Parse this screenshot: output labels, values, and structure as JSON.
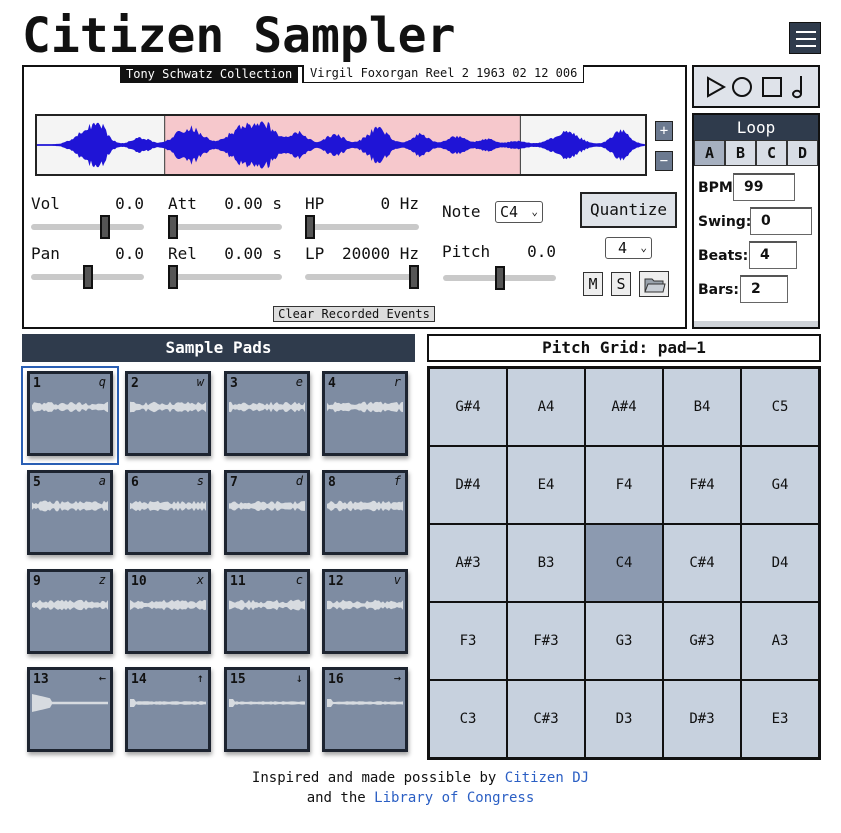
{
  "app": {
    "title": "Citizen Sampler"
  },
  "header": {
    "menu_icon": "hamburger-menu-icon"
  },
  "source": {
    "collection": "Tony Schwatz Collection",
    "reel": "Virgil Foxorgan Reel 2 1963 02 12 006"
  },
  "waveform": {
    "selection_start": 0.21,
    "selection_end": 0.795,
    "wave_color": "#1f14d6",
    "selection_color": "#f6c8cc",
    "zoom_in": "+",
    "zoom_out": "−"
  },
  "params": {
    "vol": {
      "label": "Vol",
      "value": "0.0",
      "level": 0.67
    },
    "pan": {
      "label": "Pan",
      "value": "0.0",
      "level": 0.5
    },
    "att": {
      "label": "Att",
      "value": "0.00 s",
      "level": 0.0
    },
    "rel": {
      "label": "Rel",
      "value": "0.00 s",
      "level": 0.0
    },
    "hp": {
      "label": "HP",
      "value": "0 Hz",
      "level": 0.0
    },
    "lp": {
      "label": "LP",
      "value": "20000 Hz",
      "level": 1.0
    },
    "pitch": {
      "label": "Pitch",
      "value": "0.0",
      "level": 0.5
    }
  },
  "note": {
    "label": "Note",
    "selected": "C4"
  },
  "quantize": {
    "label": "Quantize",
    "division": "4"
  },
  "buttons": {
    "mute": "M",
    "solo": "S",
    "folder_icon": "folder-icon",
    "clear": "Clear Recorded Events"
  },
  "transport": {
    "play_icon": "play-icon",
    "record_icon": "record-icon",
    "stop_icon": "stop-icon",
    "metronome_icon": "quarter-note-icon"
  },
  "loop": {
    "title": "Loop",
    "tabs": [
      "A",
      "B",
      "C",
      "D"
    ],
    "active_tab": "A",
    "bpm": {
      "label": "BPM:",
      "value": "99"
    },
    "swing": {
      "label": "Swing:",
      "value": "0"
    },
    "beats": {
      "label": "Beats:",
      "value": "4"
    },
    "bars": {
      "label": "Bars:",
      "value": "2"
    }
  },
  "pads": {
    "title": "Sample Pads",
    "selected": "1",
    "items": [
      {
        "num": "1",
        "key": "q"
      },
      {
        "num": "2",
        "key": "w"
      },
      {
        "num": "3",
        "key": "e"
      },
      {
        "num": "4",
        "key": "r"
      },
      {
        "num": "5",
        "key": "a"
      },
      {
        "num": "6",
        "key": "s"
      },
      {
        "num": "7",
        "key": "d"
      },
      {
        "num": "8",
        "key": "f"
      },
      {
        "num": "9",
        "key": "z"
      },
      {
        "num": "10",
        "key": "x"
      },
      {
        "num": "11",
        "key": "c"
      },
      {
        "num": "12",
        "key": "v"
      },
      {
        "num": "13",
        "key": "←"
      },
      {
        "num": "14",
        "key": "↑"
      },
      {
        "num": "15",
        "key": "↓"
      },
      {
        "num": "16",
        "key": "→"
      }
    ]
  },
  "pitch_grid": {
    "title": "Pitch Grid: pad–1",
    "active": "C4",
    "rows": [
      [
        "G#4",
        "A4",
        "A#4",
        "B4",
        "C5"
      ],
      [
        "D#4",
        "E4",
        "F4",
        "F#4",
        "G4"
      ],
      [
        "A#3",
        "B3",
        "C4",
        "C#4",
        "D4"
      ],
      [
        "F3",
        "F#3",
        "G3",
        "G#3",
        "A3"
      ],
      [
        "C3",
        "C#3",
        "D3",
        "D#3",
        "E3"
      ]
    ]
  },
  "credits": {
    "line1_prefix": "Inspired and made possible by",
    "line1_link": "Citizen DJ",
    "line2_prefix": "and the",
    "line2_link": "Library of Congress"
  }
}
